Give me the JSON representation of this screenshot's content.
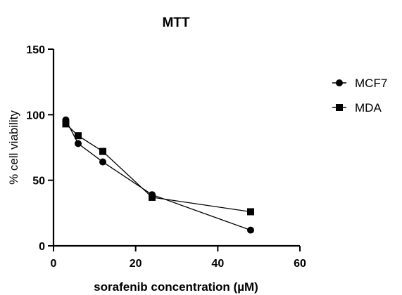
{
  "chart_data": {
    "type": "line",
    "title": "MTT",
    "xlabel": "sorafenib concentration (µM)",
    "ylabel": "% cell viability",
    "xlim": [
      0,
      60
    ],
    "ylim": [
      0,
      150
    ],
    "xticks": [
      0,
      20,
      40,
      60
    ],
    "yticks": [
      0,
      50,
      100,
      150
    ],
    "grid": false,
    "legend_position": "top-right",
    "series": [
      {
        "name": "MCF7",
        "marker": "circle",
        "color": "#000000",
        "x": [
          3,
          6,
          12,
          24,
          48
        ],
        "y": [
          96,
          78,
          64,
          39,
          12
        ]
      },
      {
        "name": "MDA",
        "marker": "square",
        "color": "#000000",
        "x": [
          3,
          6,
          12,
          24,
          48
        ],
        "y": [
          93,
          84,
          72,
          37,
          26
        ]
      }
    ]
  }
}
